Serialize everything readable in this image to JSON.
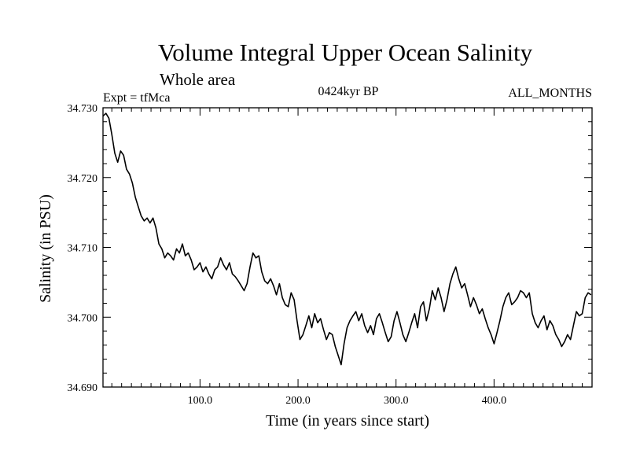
{
  "header": {
    "title": "Volume Integral Upper Ocean Salinity",
    "subtitle": "Whole area",
    "expt": "Expt = tfMca",
    "period": "0424kyr BP",
    "months": "ALL_MONTHS"
  },
  "chart_data": {
    "type": "line",
    "title": "Volume Integral Upper Ocean Salinity",
    "xlabel": "Time (in years since start)",
    "ylabel": "Salinity (in PSU)",
    "xlim": [
      1,
      500
    ],
    "ylim": [
      34.69,
      34.73
    ],
    "x_ticks": [
      100,
      200,
      300,
      400
    ],
    "x_tick_labels": [
      "100.0",
      "200.0",
      "300.0",
      "400.0"
    ],
    "y_ticks": [
      34.69,
      34.7,
      34.71,
      34.72,
      34.73
    ],
    "y_tick_labels": [
      "34.690",
      "34.700",
      "34.710",
      "34.720",
      "34.730"
    ],
    "grid": false,
    "series": [
      {
        "color": "#000000",
        "x": [
          1,
          4,
          7,
          10,
          13,
          16,
          19,
          22,
          25,
          28,
          31,
          34,
          37,
          40,
          43,
          46,
          49,
          52,
          55,
          58,
          61,
          64,
          67,
          70,
          73,
          76,
          79,
          82,
          85,
          88,
          91,
          94,
          97,
          100,
          103,
          106,
          109,
          112,
          115,
          118,
          121,
          124,
          127,
          130,
          133,
          136,
          139,
          142,
          145,
          148,
          151,
          154,
          157,
          160,
          163,
          166,
          169,
          172,
          175,
          178,
          181,
          184,
          187,
          190,
          193,
          196,
          199,
          202,
          205,
          208,
          211,
          214,
          217,
          220,
          223,
          226,
          229,
          232,
          235,
          238,
          241,
          244,
          247,
          250,
          253,
          256,
          259,
          262,
          265,
          268,
          271,
          274,
          277,
          280,
          283,
          286,
          289,
          292,
          295,
          298,
          301,
          304,
          307,
          310,
          313,
          316,
          319,
          322,
          325,
          328,
          331,
          334,
          337,
          340,
          343,
          346,
          349,
          352,
          355,
          358,
          361,
          364,
          367,
          370,
          373,
          376,
          379,
          382,
          385,
          388,
          391,
          394,
          397,
          400,
          403,
          406,
          409,
          412,
          415,
          418,
          421,
          424,
          427,
          430,
          433,
          436,
          439,
          442,
          445,
          448,
          451,
          454,
          457,
          460,
          463,
          466,
          469,
          472,
          475,
          478,
          481,
          484,
          487,
          490,
          493,
          496,
          499
        ],
        "y": [
          34.7288,
          34.7292,
          34.7285,
          34.7262,
          34.7235,
          34.7222,
          34.7238,
          34.7232,
          34.7212,
          34.7205,
          34.7192,
          34.7172,
          34.7158,
          34.7145,
          34.7138,
          34.7142,
          34.7135,
          34.7142,
          34.7128,
          34.7105,
          34.7098,
          34.7085,
          34.7092,
          34.7088,
          34.7082,
          34.7098,
          34.7092,
          34.7105,
          34.7088,
          34.7092,
          34.7082,
          34.7068,
          34.7072,
          34.7078,
          34.7065,
          34.7072,
          34.7062,
          34.7055,
          34.7068,
          34.7072,
          34.7085,
          34.7075,
          34.7068,
          34.7078,
          34.7062,
          34.7058,
          34.7052,
          34.7045,
          34.7038,
          34.7048,
          34.7072,
          34.7092,
          34.7085,
          34.7088,
          34.7065,
          34.7052,
          34.7048,
          34.7055,
          34.7045,
          34.7032,
          34.7048,
          34.7028,
          34.7018,
          34.7015,
          34.7035,
          34.7025,
          34.6995,
          34.6968,
          34.6975,
          34.6988,
          34.7002,
          34.6985,
          34.7005,
          34.6992,
          34.6998,
          34.6982,
          34.6968,
          34.6978,
          34.6975,
          34.6958,
          34.6945,
          34.6932,
          34.6962,
          34.6985,
          34.6995,
          34.7002,
          34.7008,
          34.6995,
          34.7005,
          34.6988,
          34.6978,
          34.6988,
          34.6975,
          34.6998,
          34.7005,
          34.6992,
          34.6978,
          34.6965,
          34.6972,
          34.6995,
          34.7008,
          34.6992,
          34.6975,
          34.6965,
          34.6978,
          34.6992,
          34.7005,
          34.6985,
          34.7015,
          34.7022,
          34.6995,
          34.7012,
          34.7038,
          34.7025,
          34.7042,
          34.7028,
          34.7008,
          34.7025,
          34.7048,
          34.7062,
          34.7072,
          34.7055,
          34.7042,
          34.7048,
          34.7032,
          34.7015,
          34.7028,
          34.7018,
          34.7005,
          34.7012,
          34.6998,
          34.6985,
          34.6975,
          34.6962,
          34.6978,
          34.6995,
          34.7015,
          34.7028,
          34.7035,
          34.7018,
          34.7022,
          34.7028,
          34.7038,
          34.7035,
          34.7028,
          34.7035,
          34.7005,
          34.6992,
          34.6985,
          34.6995,
          34.7002,
          34.6982,
          34.6995,
          34.6988,
          34.6975,
          34.6968,
          34.6958,
          34.6965,
          34.6975,
          34.6968,
          34.6988,
          34.7008,
          34.7002,
          34.7005,
          34.7028,
          34.7035,
          34.7032
        ]
      }
    ]
  }
}
